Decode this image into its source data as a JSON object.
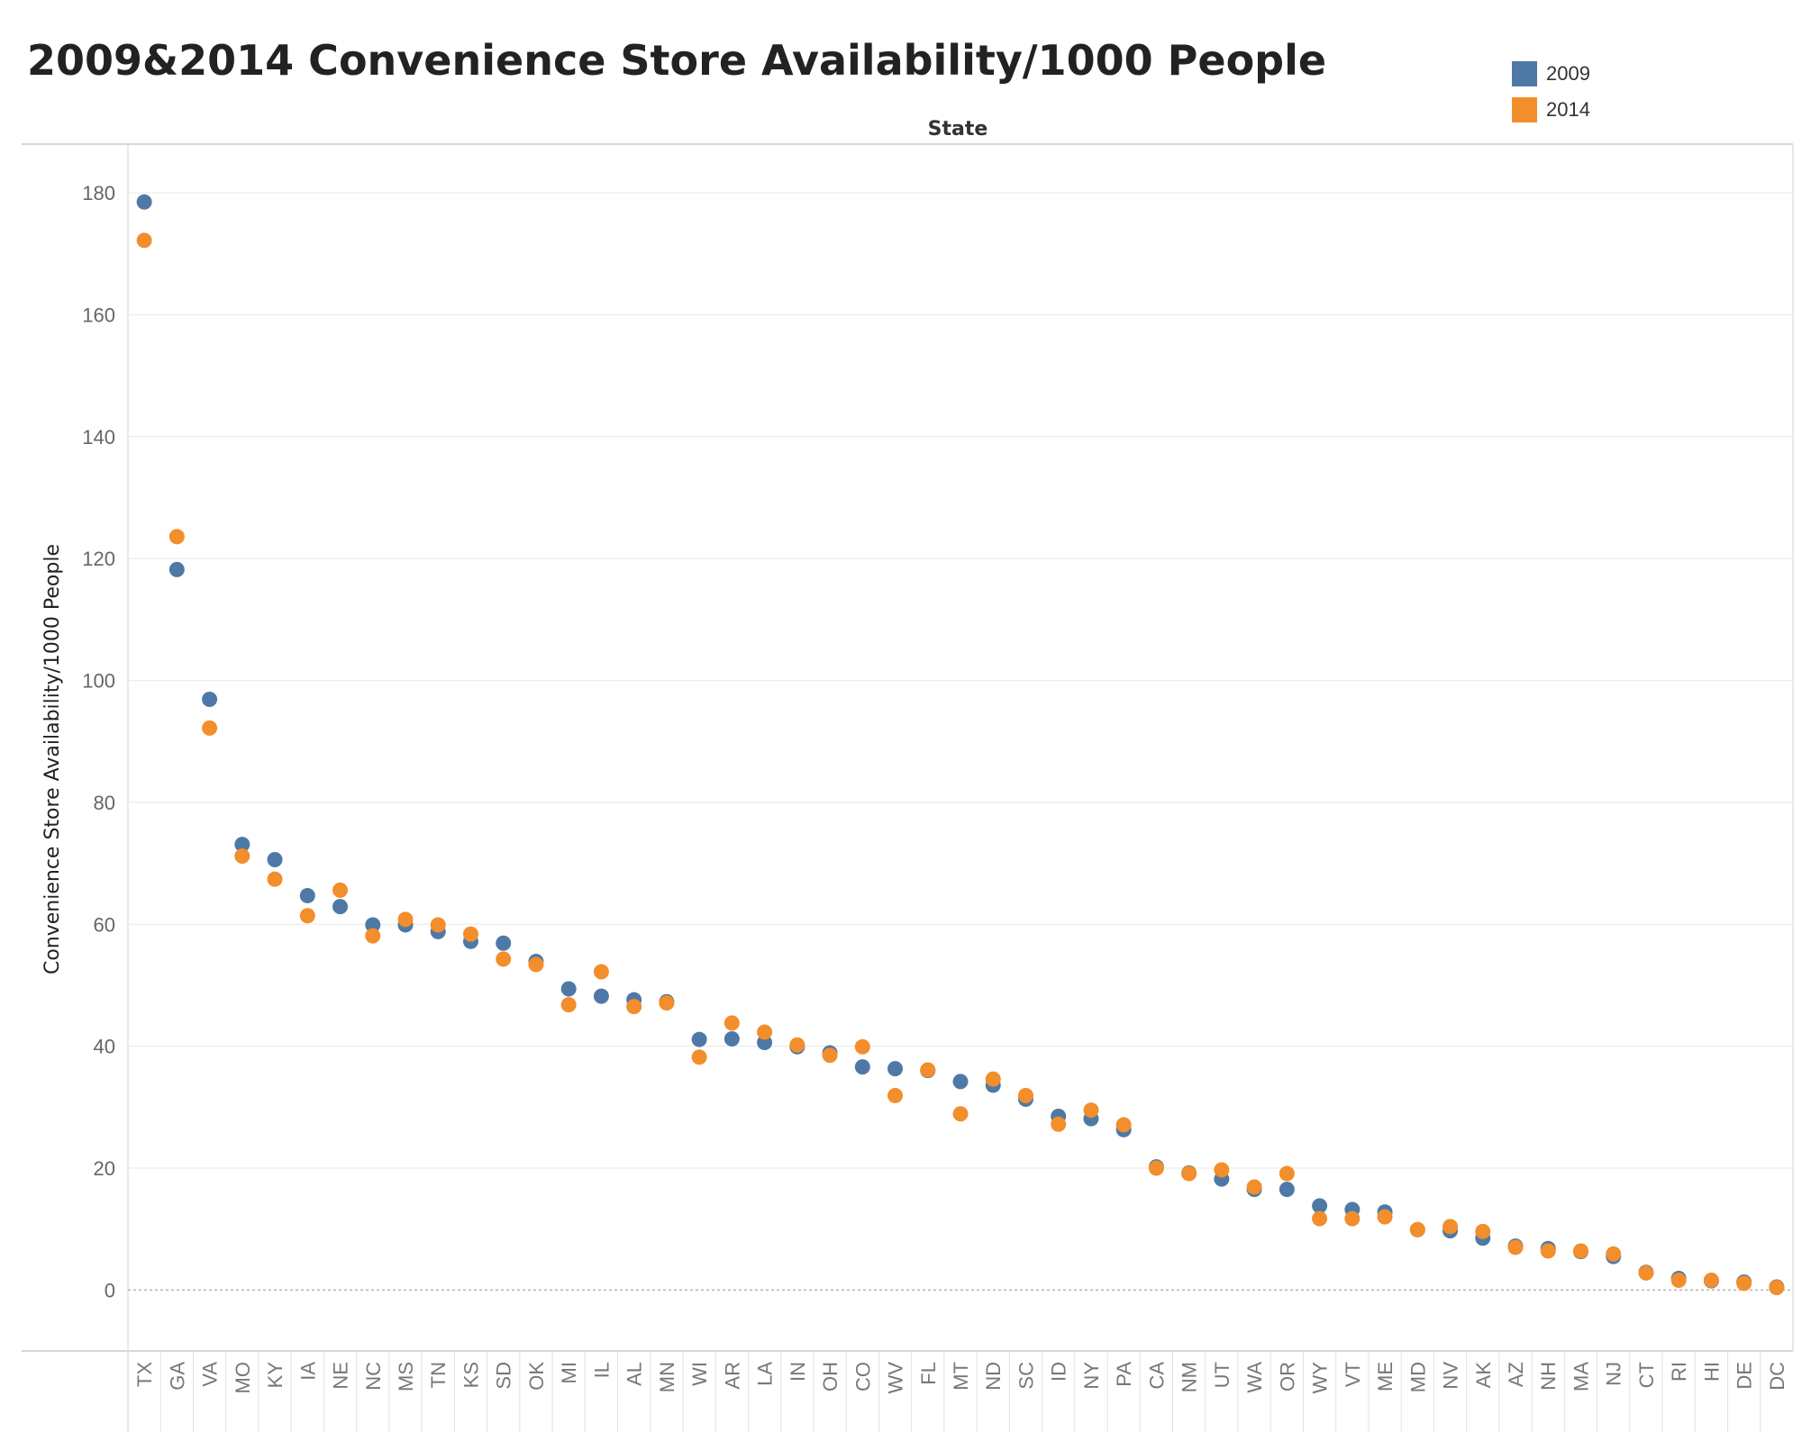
{
  "chart_data": {
    "type": "scatter",
    "title": "2009&2014 Convenience Store Availability/1000 People",
    "xlabel": "State",
    "ylabel": "Convenience Store Availability/1000 People",
    "ylim": [
      -10,
      188
    ],
    "yticks": [
      0,
      20,
      40,
      60,
      80,
      100,
      120,
      140,
      160,
      180
    ],
    "grid": true,
    "legend_position": "top-right",
    "categories": [
      "TX",
      "GA",
      "VA",
      "MO",
      "KY",
      "IA",
      "NE",
      "NC",
      "MS",
      "TN",
      "KS",
      "SD",
      "OK",
      "MI",
      "IL",
      "AL",
      "MN",
      "WI",
      "AR",
      "LA",
      "IN",
      "OH",
      "CO",
      "WV",
      "FL",
      "MT",
      "ND",
      "SC",
      "ID",
      "NY",
      "PA",
      "CA",
      "NM",
      "UT",
      "WA",
      "OR",
      "WY",
      "VT",
      "ME",
      "MD",
      "NV",
      "AK",
      "AZ",
      "NH",
      "MA",
      "NJ",
      "CT",
      "RI",
      "HI",
      "DE",
      "DC"
    ],
    "series": [
      {
        "name": "2009",
        "color": "#4e79a7",
        "values": [
          178.5,
          118.2,
          96.9,
          73.1,
          70.6,
          64.7,
          62.9,
          59.9,
          59.9,
          58.8,
          57.2,
          56.9,
          53.9,
          49.4,
          48.2,
          47.6,
          47.3,
          41.1,
          41.2,
          40.6,
          39.9,
          38.9,
          36.6,
          36.3,
          36.0,
          34.2,
          33.6,
          31.3,
          28.5,
          28.1,
          26.3,
          20.2,
          19.2,
          18.2,
          16.5,
          16.5,
          13.8,
          13.2,
          12.8,
          9.9,
          9.7,
          8.5,
          7.2,
          6.8,
          6.3,
          5.5,
          2.9,
          1.9,
          1.5,
          1.3,
          0.5
        ]
      },
      {
        "name": "2014",
        "color": "#f28e2b",
        "values": [
          172.2,
          123.6,
          92.2,
          71.2,
          67.4,
          61.4,
          65.6,
          58.1,
          60.8,
          59.9,
          58.4,
          54.3,
          53.4,
          46.8,
          52.2,
          46.5,
          47.1,
          38.2,
          43.8,
          42.3,
          40.2,
          38.5,
          39.9,
          31.9,
          36.1,
          28.9,
          34.6,
          31.9,
          27.2,
          29.5,
          27.1,
          20.0,
          19.1,
          19.7,
          16.9,
          19.1,
          11.7,
          11.7,
          12.0,
          9.9,
          10.4,
          9.6,
          7.0,
          6.4,
          6.4,
          5.9,
          2.8,
          1.6,
          1.6,
          1.1,
          0.4
        ]
      }
    ]
  }
}
